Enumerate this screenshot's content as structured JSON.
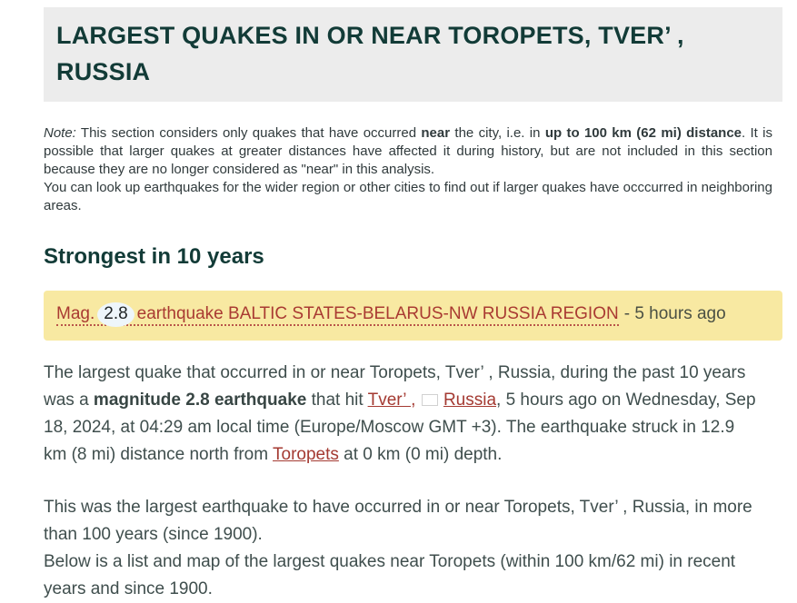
{
  "page": {
    "title": "LARGEST QUAKES IN OR NEAR TOROPETS, TVER’ , RUSSIA"
  },
  "note": {
    "label": "Note:",
    "t1": " This section considers only quakes that have occurred ",
    "b1": "near",
    "t2": " the city, i.e. in ",
    "b2": "up to 100 km (62 mi) distance",
    "t3": ". It is possible that larger quakes at greater distances have affected it during history, but are not included in this section because they are no longer considered as \"near\" in this analysis.",
    "t4": "You can look up earthquakes for the wider region or other cities to find out if larger quakes have occcurred in neighboring areas."
  },
  "section": {
    "heading": "Strongest in 10 years"
  },
  "quake_box": {
    "mag_label": "Mag.",
    "magnitude": "2.8",
    "link_rest": "earthquake BALTIC STATES-BELARUS-NW RUSSIA REGION",
    "time_ago": "- 5 hours ago"
  },
  "paragraph1": {
    "t1": "The largest quake that occurred in or near Toropets, Tver’ , Russia, during the past 10 years was a ",
    "b1": "magnitude 2.8 earthquake",
    "t2": " that hit ",
    "link_tver": "Tver’ ,",
    "flag_icon": "russia-flag",
    "link_russia": "Russia",
    "t3": ", 5 hours ago on Wednesday, Sep 18, 2024, at 04:29 am local time (Europe/Moscow GMT +3). The earthquake struck in 12.9 km (8 mi) distance north from ",
    "link_toropets": "Toropets",
    "t4": " at 0 km (0 mi) depth."
  },
  "paragraph2": {
    "line1": "This was the largest earthquake to have occurred in or near Toropets, Tver’ , Russia, in more than 100 years (since 1900).",
    "line2": "Below is a list and map of the largest quakes near Toropets (within 100 km/62 mi) in recent years and since 1900."
  },
  "colors": {
    "heading_teal": "#123b37",
    "link_red": "#a43a32",
    "banner_yellow": "#f8e9a2",
    "header_gray": "#ececec",
    "body_text": "#3f4e4d"
  }
}
